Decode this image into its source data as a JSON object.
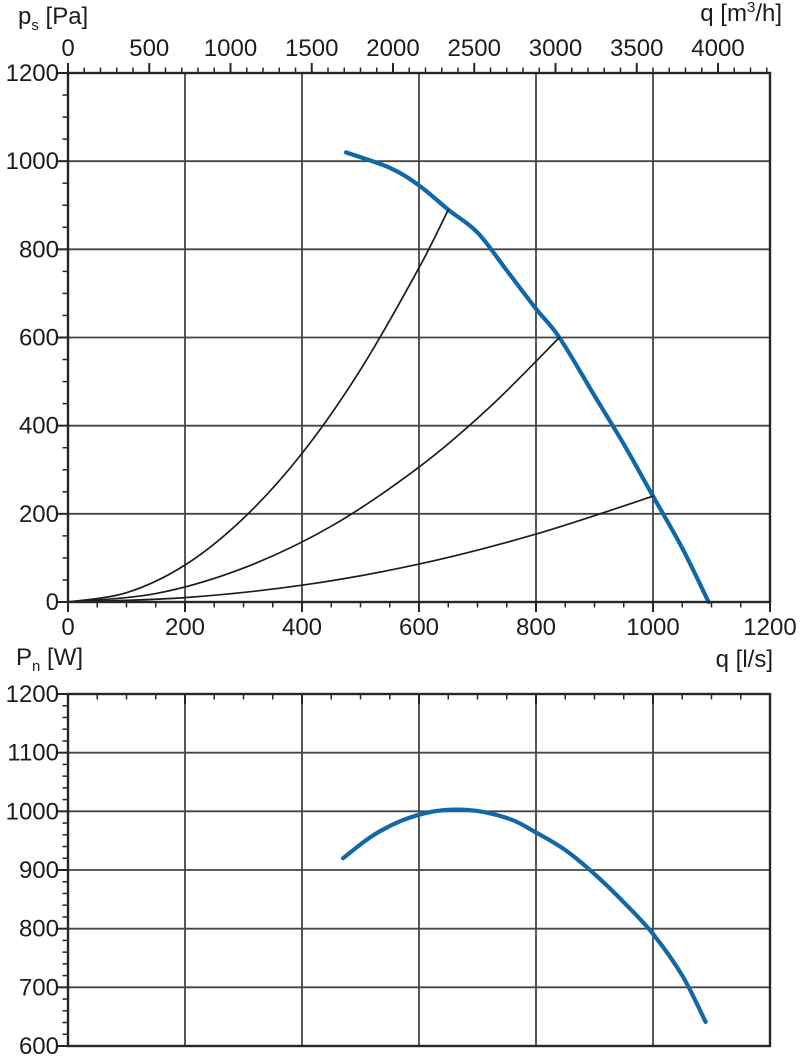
{
  "page": {
    "background": "#ffffff"
  },
  "colors": {
    "curve_blue": "#1268a7",
    "system_curve_black": "#1c1c1a",
    "grid": "#454543",
    "axis": "#262624",
    "text": "#1c1c1a"
  },
  "titles": {
    "pressure_axis": {
      "main": "p",
      "sub": "s",
      "rest": " [Pa]"
    },
    "flow_axis_top": {
      "main": "q [m",
      "sup": "3",
      "rest": "/h]"
    },
    "power_axis": {
      "main": "P",
      "sub": "n",
      "rest": " [W]"
    },
    "flow_axis_bottom": "q [l/s]"
  },
  "chart_data": [
    {
      "type": "line",
      "title": "Fan static pressure vs flow with system curves",
      "xlabel": "q [l/s]",
      "xlabel_top": "q [m3/h]",
      "ylabel": "p_s [Pa]",
      "xlim": [
        0,
        1200
      ],
      "ylim": [
        0,
        1200
      ],
      "x_ticks_major": [
        0,
        200,
        400,
        600,
        800,
        1000,
        1200
      ],
      "x_tick_minor_step": 50,
      "y_ticks_major": [
        0,
        200,
        400,
        600,
        800,
        1000,
        1200
      ],
      "y_tick_minor_step": 50,
      "top_axis": {
        "unit_per_ls": 3.6,
        "ticks_major": [
          0,
          500,
          1000,
          1500,
          2000,
          2500,
          3000,
          3500,
          4000
        ],
        "minor_step": 100,
        "minor_max": 4300
      },
      "grid": true,
      "series": [
        {
          "name": "fan-pressure-curve",
          "color_key": "curve_blue",
          "width": 4.2,
          "points": [
            [
              475,
              1020
            ],
            [
              550,
              985
            ],
            [
              600,
              945
            ],
            [
              650,
              890
            ],
            [
              700,
              838
            ],
            [
              750,
              752
            ],
            [
              800,
              665
            ],
            [
              840,
              600
            ],
            [
              900,
              468
            ],
            [
              950,
              358
            ],
            [
              1000,
              240
            ],
            [
              1050,
              122
            ],
            [
              1095,
              0
            ]
          ]
        },
        {
          "name": "system-curve-1",
          "color_key": "system_curve_black",
          "width": 1.7,
          "points": [
            [
              0,
              0
            ],
            [
              100,
              21
            ],
            [
              200,
              84
            ],
            [
              300,
              190
            ],
            [
              400,
              337
            ],
            [
              500,
              527
            ],
            [
              600,
              758
            ],
            [
              650,
              890
            ]
          ]
        },
        {
          "name": "system-curve-2",
          "color_key": "system_curve_black",
          "width": 1.7,
          "points": [
            [
              0,
              0
            ],
            [
              150,
              19
            ],
            [
              300,
              77
            ],
            [
              450,
              172
            ],
            [
              600,
              306
            ],
            [
              720,
              441
            ],
            [
              840,
              600
            ]
          ]
        },
        {
          "name": "system-curve-3",
          "color_key": "system_curve_black",
          "width": 1.7,
          "points": [
            [
              0,
              0
            ],
            [
              200,
              10
            ],
            [
              400,
              38
            ],
            [
              600,
              86
            ],
            [
              800,
              154
            ],
            [
              1000,
              240
            ]
          ]
        }
      ]
    },
    {
      "type": "line",
      "title": "Fan power input vs flow",
      "xlabel": "",
      "ylabel": "P_n [W]",
      "xlim": [
        0,
        1200
      ],
      "ylim": [
        600,
        1200
      ],
      "x_ticks_major": [
        0,
        200,
        400,
        600,
        800,
        1000,
        1200
      ],
      "x_tick_minor_step": 50,
      "y_ticks_major": [
        600,
        700,
        800,
        900,
        1000,
        1100,
        1200
      ],
      "y_tick_minor_step": 20,
      "grid": true,
      "series": [
        {
          "name": "power-curve",
          "color_key": "curve_blue",
          "width": 4.2,
          "points": [
            [
              470,
              920
            ],
            [
              520,
              958
            ],
            [
              570,
              984
            ],
            [
              620,
              999
            ],
            [
              665,
              1003
            ],
            [
              710,
              999
            ],
            [
              760,
              985
            ],
            [
              800,
              964
            ],
            [
              850,
              934
            ],
            [
              900,
              893
            ],
            [
              950,
              845
            ],
            [
              1000,
              791
            ],
            [
              1050,
              720
            ],
            [
              1090,
              641
            ]
          ]
        }
      ]
    }
  ]
}
